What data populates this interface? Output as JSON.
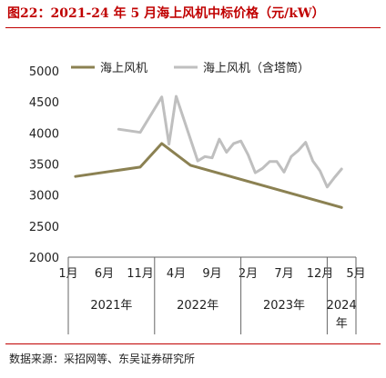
{
  "figure_title": "图22：2021-24 年 5 月海上风机中标价格（元/kW）",
  "source": "数据来源：采招网等、东吴证券研究所",
  "chart_data": {
    "type": "line",
    "title": "",
    "xlabel": "",
    "ylabel": "",
    "ylim": [
      2000,
      5000
    ],
    "y_ticks": [
      2000,
      2500,
      3000,
      3500,
      4000,
      4500,
      5000
    ],
    "x_index_range": [
      0,
      40
    ],
    "x_tick_labels": [
      {
        "i": 0,
        "label": "1月"
      },
      {
        "i": 5,
        "label": "6月"
      },
      {
        "i": 10,
        "label": "11月"
      },
      {
        "i": 15,
        "label": "4月"
      },
      {
        "i": 20,
        "label": "9月"
      },
      {
        "i": 25,
        "label": "2月"
      },
      {
        "i": 30,
        "label": "7月"
      },
      {
        "i": 35,
        "label": "12月"
      },
      {
        "i": 40,
        "label": "5月"
      }
    ],
    "year_groups": [
      {
        "label": "2021年",
        "from": 0,
        "to": 12
      },
      {
        "label": "2022年",
        "from": 12,
        "to": 24
      },
      {
        "label": "2023年",
        "from": 24,
        "to": 36
      },
      {
        "label": "2024年",
        "from": 36,
        "to": 40
      }
    ],
    "legend_position": "top",
    "grid": false,
    "series": [
      {
        "name": "海上风机",
        "color": "#8b8152",
        "width": 3,
        "points": [
          [
            1,
            3300
          ],
          [
            10,
            3450
          ],
          [
            13,
            3830
          ],
          [
            17,
            3480
          ],
          [
            38,
            2800
          ]
        ]
      },
      {
        "name": "海上风机（含塔筒）",
        "color": "#bfbfbf",
        "width": 3,
        "points": [
          [
            7,
            4060
          ],
          [
            10,
            4010
          ],
          [
            13,
            4580
          ],
          [
            14,
            3820
          ],
          [
            15,
            4590
          ],
          [
            18,
            3550
          ],
          [
            19,
            3620
          ],
          [
            20,
            3600
          ],
          [
            21,
            3900
          ],
          [
            22,
            3690
          ],
          [
            23,
            3830
          ],
          [
            24,
            3870
          ],
          [
            25,
            3650
          ],
          [
            26,
            3360
          ],
          [
            27,
            3430
          ],
          [
            28,
            3540
          ],
          [
            29,
            3540
          ],
          [
            30,
            3370
          ],
          [
            31,
            3620
          ],
          [
            32,
            3720
          ],
          [
            33,
            3850
          ],
          [
            34,
            3550
          ],
          [
            35,
            3390
          ],
          [
            36,
            3130
          ],
          [
            37,
            3280
          ],
          [
            38,
            3420
          ]
        ]
      }
    ]
  }
}
